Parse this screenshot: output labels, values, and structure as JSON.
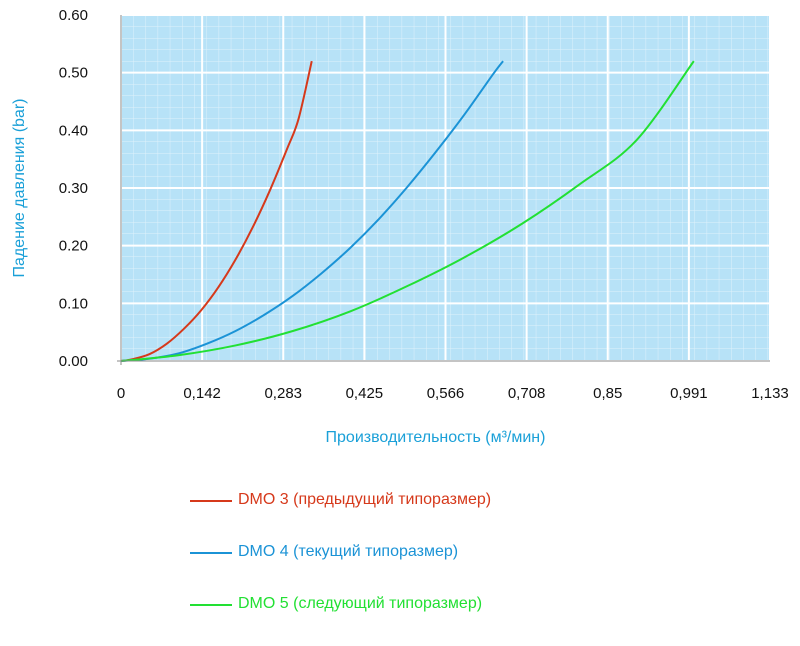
{
  "chart_data": {
    "type": "line",
    "xlabel": "Производительность (м³/мин)",
    "ylabel": "Падение давления (bar)",
    "xlim": [
      0,
      1.133
    ],
    "ylim": [
      0,
      0.6
    ],
    "x_ticks": [
      "0",
      "0,142",
      "0,283",
      "0,425",
      "0,566",
      "0,708",
      "0,85",
      "0,991",
      "1,133"
    ],
    "y_ticks": [
      "0.00",
      "0.10",
      "0.20",
      "0.30",
      "0.40",
      "0.50",
      "0.60"
    ],
    "grid": true,
    "legend_position": "bottom",
    "plot_background": "#b7e2f7",
    "axis_title_color": "#1aa0d8",
    "series": [
      {
        "name": "DMO 3 (предыдущий типоразмер)",
        "color": "#d6391b",
        "x": [
          0,
          0.02,
          0.05,
          0.08,
          0.11,
          0.14,
          0.17,
          0.2,
          0.23,
          0.26,
          0.29,
          0.31,
          0.333
        ],
        "y": [
          0,
          0.003,
          0.012,
          0.03,
          0.056,
          0.088,
          0.128,
          0.176,
          0.232,
          0.296,
          0.368,
          0.42,
          0.52
        ]
      },
      {
        "name": "DMO 4 (текущий типоразмер)",
        "color": "#1b93d6",
        "x": [
          0,
          0.05,
          0.1,
          0.15,
          0.2,
          0.25,
          0.3,
          0.35,
          0.4,
          0.45,
          0.5,
          0.55,
          0.6,
          0.65,
          0.667
        ],
        "y": [
          0,
          0.004,
          0.013,
          0.03,
          0.052,
          0.08,
          0.113,
          0.152,
          0.196,
          0.246,
          0.302,
          0.363,
          0.428,
          0.498,
          0.52
        ]
      },
      {
        "name": "DMO 5 (следующий типоразмер)",
        "color": "#22e033",
        "x": [
          0,
          0.1,
          0.2,
          0.3,
          0.4,
          0.5,
          0.6,
          0.7,
          0.8,
          0.9,
          1.0
        ],
        "y": [
          0,
          0.01,
          0.027,
          0.052,
          0.086,
          0.13,
          0.18,
          0.238,
          0.306,
          0.383,
          0.52
        ]
      }
    ]
  }
}
